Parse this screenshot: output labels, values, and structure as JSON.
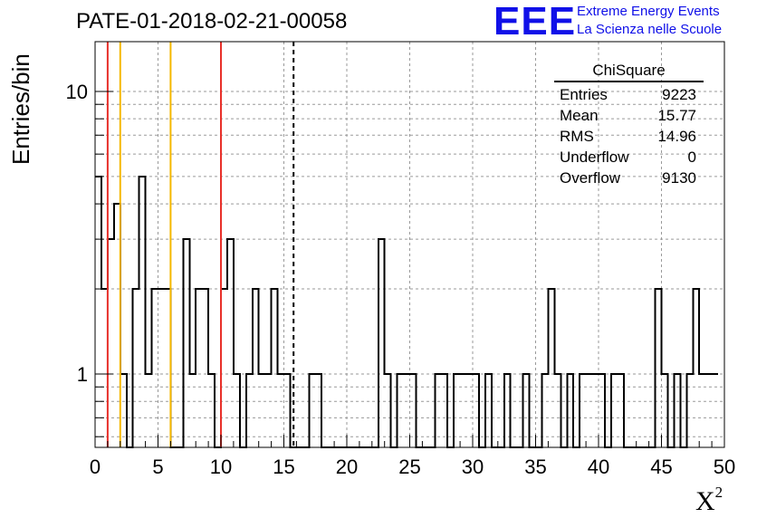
{
  "page_title": "PATE-01-2018-02-21-00058",
  "logo": {
    "mark": "EEE",
    "line1": "Extreme Energy Events",
    "line2": "La Scienza nelle Scuole"
  },
  "stats": {
    "name": "ChiSquare",
    "rows": [
      {
        "label": "Entries",
        "value": "9223"
      },
      {
        "label": "Mean",
        "value": "15.77"
      },
      {
        "label": "RMS",
        "value": "14.96"
      },
      {
        "label": "Underflow",
        "value": "0"
      },
      {
        "label": "Overflow",
        "value": "9130"
      }
    ]
  },
  "colors": {
    "red_line": "#e8302a",
    "orange_line": "#f5b800",
    "hist": "#000000",
    "grid": "#9a9a9a"
  },
  "chart_data": {
    "type": "histogram",
    "xlabel": "X²",
    "ylabel": "Entries/bin",
    "xlim": [
      0,
      50
    ],
    "ylim": [
      0.55,
      15
    ],
    "yscale": "log",
    "grid": true,
    "x_ticks": [
      0,
      5,
      10,
      15,
      20,
      25,
      30,
      35,
      40,
      45,
      50
    ],
    "y_ticks": [
      1,
      10
    ],
    "bin_width": 0.5,
    "counts": [
      5,
      2,
      3,
      4,
      1,
      0,
      2,
      5,
      1,
      2,
      2,
      2,
      0,
      0,
      3,
      1,
      2,
      2,
      1,
      0,
      2,
      3,
      1,
      0,
      1,
      2,
      1,
      1,
      2,
      1,
      1,
      0,
      0,
      0,
      1,
      1,
      0,
      0,
      0,
      0,
      0,
      0,
      0,
      0,
      0,
      3,
      1,
      0,
      1,
      1,
      1,
      0,
      0,
      0,
      1,
      1,
      0,
      1,
      1,
      1,
      1,
      0,
      1,
      0,
      0,
      1,
      0,
      0,
      1,
      0,
      0,
      1,
      2,
      1,
      0,
      1,
      0,
      1,
      1,
      1,
      1,
      0,
      1,
      1,
      0,
      0,
      0,
      0,
      0,
      2,
      1,
      0,
      1,
      0,
      1,
      2,
      1,
      1,
      1
    ],
    "vertical_lines": [
      {
        "x": 1,
        "style": "red"
      },
      {
        "x": 2,
        "style": "orange"
      },
      {
        "x": 6,
        "style": "orange"
      },
      {
        "x": 10,
        "style": "red"
      },
      {
        "x": 15.77,
        "style": "dashed"
      }
    ]
  }
}
